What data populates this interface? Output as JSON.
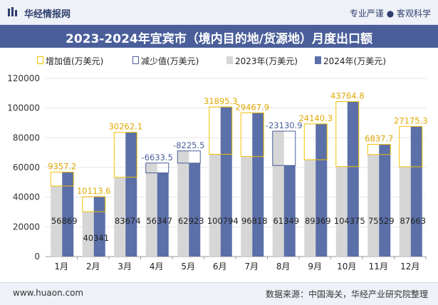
{
  "header": {
    "brand": "华经情报网",
    "tagline": "专业严谨 ● 客观科学"
  },
  "title": "2023-2024年宜宾市（境内目的地/货源地）月度出口额",
  "legend": {
    "increase": "增加值(万美元)",
    "decrease": "减少值(万美元)",
    "y2023": "2023年(万美元)",
    "y2024": "2024年(万美元)"
  },
  "colors": {
    "increase": "#f2c200",
    "decrease": "#4a5f9a",
    "y2023": "#d6d6d6",
    "y2024": "#5b6fa8"
  },
  "footer": {
    "site": "www.huaon.com",
    "source": "数据来源：中国海关，华经产业研究院整理"
  },
  "chart_data": {
    "type": "bar",
    "categories": [
      "1月",
      "2月",
      "3月",
      "4月",
      "5月",
      "6月",
      "7月",
      "8月",
      "9月",
      "10月",
      "11月",
      "12月"
    ],
    "series": [
      {
        "name": "2023年(万美元)",
        "values": [
          47512,
          30227,
          53412,
          62981,
          71148,
          68899,
          67350,
          84480,
          65229,
          60610,
          68691,
          60488
        ]
      },
      {
        "name": "2024年(万美元)",
        "values": [
          56869,
          40341,
          83674,
          56347,
          62923,
          100794,
          96818,
          61349,
          89369,
          104375,
          75529,
          87663
        ]
      }
    ],
    "change": {
      "values": [
        9357.2,
        10113.6,
        30262.1,
        -6633.5,
        -8225.5,
        31895.3,
        29467.9,
        -23130.9,
        24140.3,
        43764.8,
        6837.7,
        27175.3
      ],
      "labels": [
        "9357.2",
        "10113.6",
        "30262.1",
        "-6633.5",
        "-8225.5",
        "31895.3",
        "29467.9",
        "-23130.9",
        "24140.3",
        "43764.8",
        "6837.7",
        "27175.3"
      ]
    },
    "bar_labels": [
      "56869",
      "40341",
      "83674",
      "56347",
      "62923",
      "100794",
      "96818",
      "61349",
      "89369",
      "104375",
      "75529",
      "87663"
    ],
    "yticks": [
      "0",
      "20000",
      "40000",
      "60000",
      "80000",
      "100000",
      "120000"
    ],
    "ylim": [
      0,
      120000
    ],
    "legend_position": "top"
  }
}
